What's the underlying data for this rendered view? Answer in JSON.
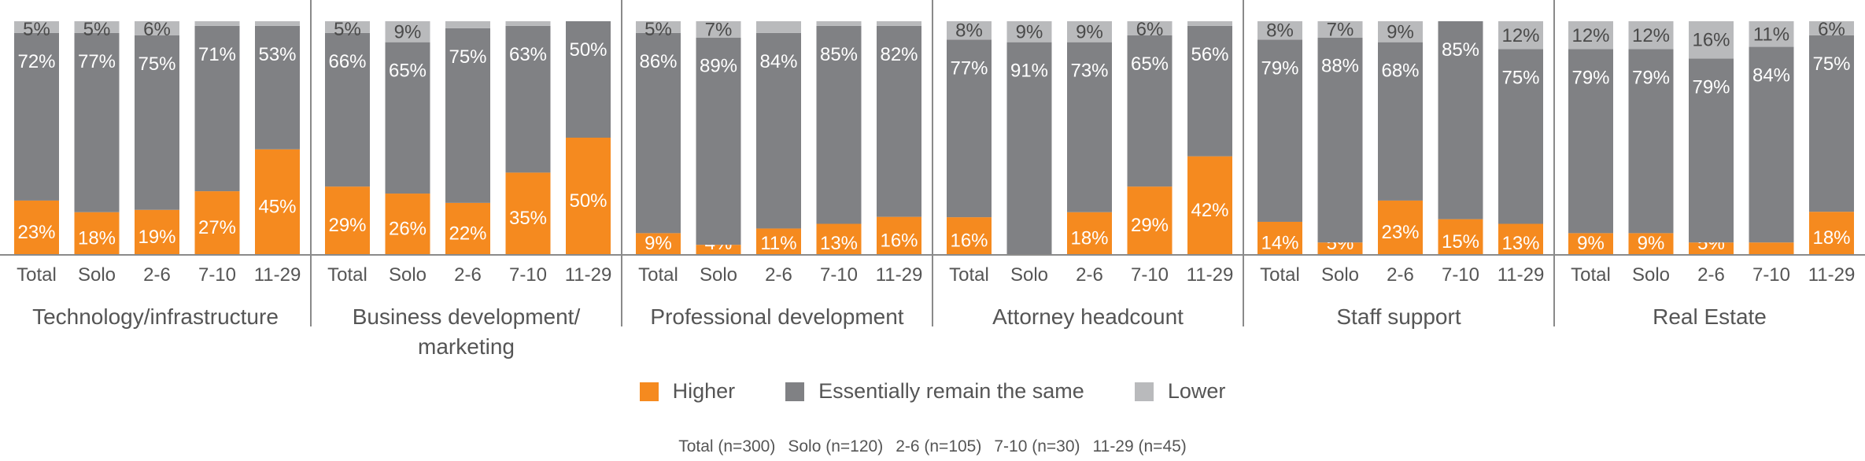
{
  "chart_data": {
    "type": "bar",
    "stacked": true,
    "percent": true,
    "categories": [
      "Total",
      "Solo",
      "2-6",
      "7-10",
      "11-29"
    ],
    "series": [
      {
        "name": "Higher",
        "color": "#F58A1F"
      },
      {
        "name": "Essentially remain the same",
        "color": "#808184"
      },
      {
        "name": "Lower",
        "color": "#B9BABC"
      }
    ],
    "groups": [
      {
        "title": [
          "Technology/infrastructure"
        ],
        "values": [
          [
            23,
            72,
            5
          ],
          [
            18,
            77,
            5
          ],
          [
            19,
            75,
            6
          ],
          [
            27,
            71,
            2
          ],
          [
            45,
            53,
            2
          ]
        ],
        "labels": [
          [
            "23%",
            "72%",
            "5%"
          ],
          [
            "18%",
            "77%",
            "5%"
          ],
          [
            "19%",
            "75%",
            "6%"
          ],
          [
            "27%",
            "71%",
            ""
          ],
          [
            "45%",
            "53%",
            ""
          ]
        ]
      },
      {
        "title": [
          "Business development/",
          "marketing"
        ],
        "values": [
          [
            29,
            66,
            5
          ],
          [
            26,
            65,
            9
          ],
          [
            22,
            75,
            3
          ],
          [
            35,
            63,
            2
          ],
          [
            50,
            50,
            0
          ]
        ],
        "labels": [
          [
            "29%",
            "66%",
            "5%"
          ],
          [
            "26%",
            "65%",
            "9%"
          ],
          [
            "22%",
            "75%",
            ""
          ],
          [
            "35%",
            "63%",
            ""
          ],
          [
            "50%",
            "50%",
            ""
          ]
        ]
      },
      {
        "title": [
          "Professional development"
        ],
        "values": [
          [
            9,
            86,
            5
          ],
          [
            4,
            89,
            7
          ],
          [
            11,
            84,
            5
          ],
          [
            13,
            85,
            2
          ],
          [
            16,
            82,
            2
          ]
        ],
        "labels": [
          [
            "9%",
            "86%",
            "5%"
          ],
          [
            "4%",
            "89%",
            "7%"
          ],
          [
            "11%",
            "84%",
            ""
          ],
          [
            "13%",
            "85%",
            ""
          ],
          [
            "16%",
            "82%",
            ""
          ]
        ]
      },
      {
        "title": [
          "Attorney headcount"
        ],
        "values": [
          [
            16,
            77,
            8
          ],
          [
            0,
            91,
            9
          ],
          [
            18,
            73,
            9
          ],
          [
            29,
            65,
            6
          ],
          [
            42,
            56,
            2
          ]
        ],
        "labels": [
          [
            "16%",
            "77%",
            "8%"
          ],
          [
            "",
            "91%",
            "9%"
          ],
          [
            "18%",
            "73%",
            "9%"
          ],
          [
            "29%",
            "65%",
            "6%"
          ],
          [
            "42%",
            "56%",
            ""
          ]
        ]
      },
      {
        "title": [
          "Staff support"
        ],
        "values": [
          [
            14,
            79,
            8
          ],
          [
            5,
            88,
            7
          ],
          [
            23,
            68,
            9
          ],
          [
            15,
            85,
            0
          ],
          [
            13,
            75,
            12
          ]
        ],
        "labels": [
          [
            "14%",
            "79%",
            "8%"
          ],
          [
            "5%",
            "88%",
            "7%"
          ],
          [
            "23%",
            "68%",
            "9%"
          ],
          [
            "15%",
            "85%",
            ""
          ],
          [
            "13%",
            "75%",
            "12%"
          ]
        ]
      },
      {
        "title": [
          "Real Estate"
        ],
        "values": [
          [
            9,
            79,
            12
          ],
          [
            9,
            79,
            12
          ],
          [
            5,
            79,
            16
          ],
          [
            5,
            84,
            11
          ],
          [
            18,
            75,
            6
          ]
        ],
        "labels": [
          [
            "9%",
            "79%",
            "12%"
          ],
          [
            "9%",
            "79%",
            "12%"
          ],
          [
            "5%",
            "79%",
            "16%"
          ],
          [
            "",
            "84%",
            "11%"
          ],
          [
            "18%",
            "75%",
            "6%"
          ]
        ]
      }
    ],
    "ylim": [
      0,
      100
    ],
    "legend_position": "bottom-center",
    "footnote": [
      "Total (n=300)",
      "Solo (n=120)",
      "2-6 (n=105)",
      "7-10 (n=30)",
      "11-29 (n=45)"
    ]
  }
}
